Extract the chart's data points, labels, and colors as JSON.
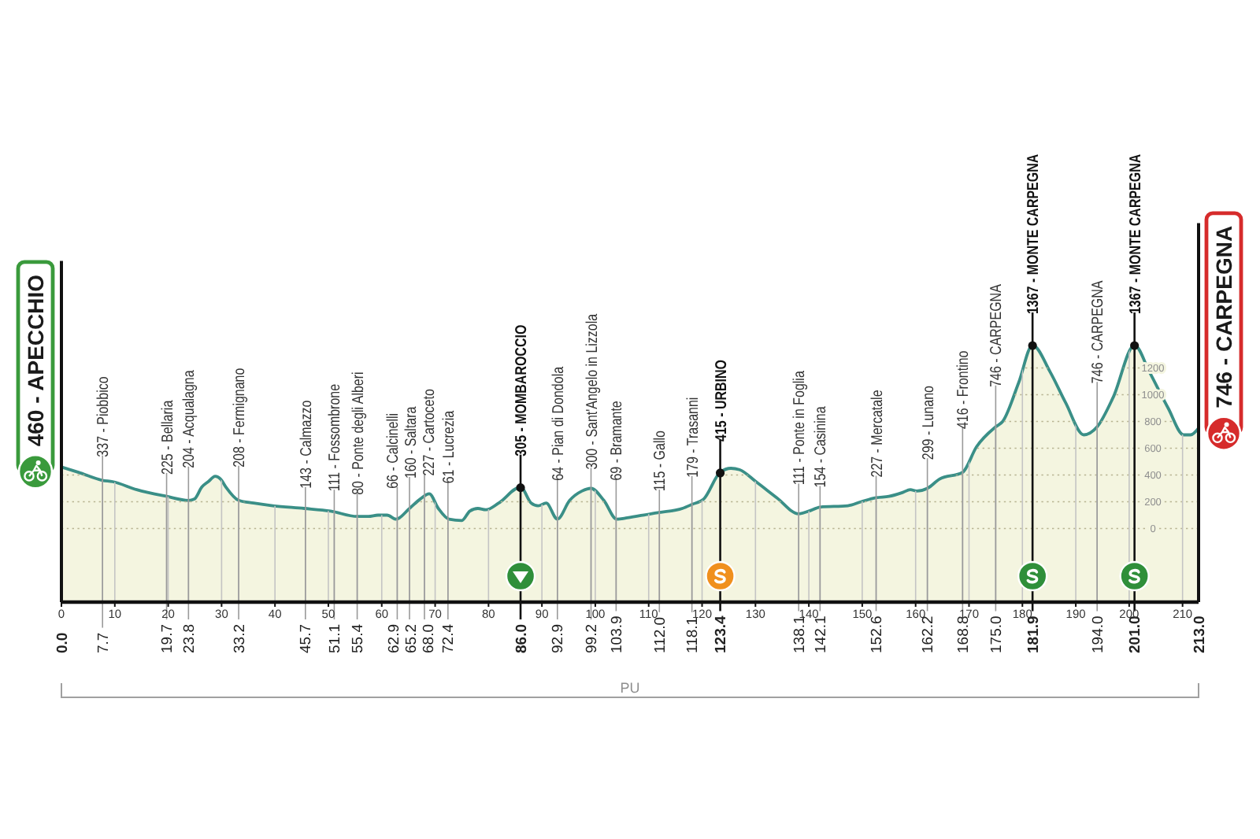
{
  "chart_data": {
    "type": "area",
    "color": "#f4f5e0",
    "x": [
      0,
      3.2,
      7.7,
      9.6,
      14.1,
      19.7,
      23.8,
      24.9,
      26.3,
      27.5,
      28.8,
      29.8,
      30.8,
      33.2,
      36,
      39.6,
      45.5,
      50.4,
      55.4,
      57.5,
      59.3,
      61,
      62.7,
      65.2,
      67.2,
      68.9,
      70.6,
      72.6,
      75,
      76.5,
      78,
      79.5,
      81.9,
      86,
      88,
      89.3,
      90.8,
      92.9,
      95.2,
      97.5,
      99.2,
      101.6,
      104,
      106,
      110.4,
      112,
      116.3,
      118.1,
      120.3,
      123.4,
      125.4,
      127,
      130.1,
      134,
      138.1,
      140,
      142.1,
      147.3,
      149.8,
      152.6,
      155,
      157.6,
      159,
      160.2,
      162.2,
      164.5,
      168.8,
      171.4,
      175,
      176.3,
      179.3,
      181.9,
      185.2,
      188.1,
      191.5,
      194,
      197,
      201,
      203.8,
      207.3,
      210.2,
      211.5,
      213
    ],
    "values": [
      460,
      420,
      360,
      350,
      290,
      240,
      210,
      220,
      310,
      350,
      390,
      370,
      310,
      210,
      190,
      170,
      150,
      130,
      90,
      90,
      100,
      100,
      70,
      150,
      220,
      260,
      150,
      70,
      60,
      130,
      150,
      140,
      190,
      310,
      190,
      170,
      190,
      70,
      210,
      280,
      300,
      210,
      70,
      80,
      110,
      120,
      150,
      180,
      220,
      420,
      450,
      440,
      350,
      230,
      110,
      130,
      160,
      170,
      200,
      230,
      240,
      270,
      290,
      280,
      300,
      370,
      420,
      610,
      760,
      800,
      1090,
      1370,
      1170,
      940,
      700,
      760,
      980,
      1370,
      1170,
      900,
      700,
      700,
      750
    ],
    "xlim": [
      0,
      213
    ],
    "ylim": [
      -550,
      2000
    ],
    "xticks": [
      {
        "value": 0,
        "label": "0.0"
      },
      7.7,
      19.7,
      23.8,
      33.2,
      45.7,
      51.1,
      55.4,
      62.9,
      65.2,
      {
        "value": 68,
        "label": "68.0"
      },
      72.4,
      {
        "value": 86,
        "label": "86.0"
      },
      92.9,
      99.2,
      103.9,
      {
        "value": 112,
        "label": "112.0"
      },
      118.1,
      123.4,
      138.1,
      142.1,
      152.6,
      162.2,
      168.8,
      {
        "value": 175,
        "label": "175.0"
      },
      181.9,
      {
        "value": 194,
        "label": "194.0"
      },
      {
        "value": 201,
        "label": "201.0"
      },
      {
        "value": 213,
        "label": "213.0"
      }
    ],
    "x2lim": [
      0,
      213
    ],
    "x2ticks": [
      0,
      10,
      20,
      30,
      40,
      50,
      60,
      70,
      80,
      90,
      100,
      110,
      120,
      130,
      140,
      150,
      160,
      170,
      180,
      190,
      200,
      210
    ],
    "yticks": [
      0,
      200,
      400,
      600,
      800,
      1000,
      1200
    ],
    "grid": true,
    "bands": [
      {
        "axis": "y",
        "from": -550,
        "to": 0,
        "color": "#f4f5e0"
      }
    ],
    "annotations": [
      {
        "text": "460 - APECCHIO",
        "x": 0,
        "y": 460
      },
      {
        "text": "305 - MOMBAROCCIO",
        "x": 86.0,
        "y": 305
      },
      {
        "text": "415 - URBINO",
        "x": 123.4,
        "y": 415
      },
      {
        "text": "1367 - MONTE CARPEGNA",
        "x": 181.9,
        "y": 1367
      },
      {
        "text": "1367 - MONTE CARPEGNA",
        "x": 201.0,
        "y": 1367
      },
      {
        "text": "746 - CARPEGNA",
        "x": 213,
        "y": 746
      },
      "PU"
    ],
    "ref_lines": [
      {
        "axis": "x",
        "value": 7.7,
        "label": "337 - Piobbico",
        "color": "#9a9a9a"
      },
      {
        "axis": "x",
        "value": 19.7,
        "label": "225 - Bellaria",
        "color": "#9a9a9a"
      },
      {
        "axis": "x",
        "value": 23.8,
        "label": "204 - Acqualagna",
        "color": "#9a9a9a"
      },
      {
        "axis": "x",
        "value": 33.2,
        "label": "208 - Fermignano",
        "color": "#9a9a9a"
      },
      {
        "axis": "x",
        "value": 45.7,
        "label": "143 - Calmazzo",
        "color": "#9a9a9a"
      },
      {
        "axis": "x",
        "value": 51.1,
        "label": "111 - Fossombrone",
        "color": "#9a9a9a"
      },
      {
        "axis": "x",
        "value": 55.4,
        "label": "80 - Ponte degli Alberi",
        "color": "#9a9a9a"
      },
      {
        "axis": "x",
        "value": 62.9,
        "label": "66 - Calcinelli",
        "color": "#9a9a9a"
      },
      {
        "axis": "x",
        "value": 65.2,
        "label": "160 - Saltara",
        "color": "#9a9a9a"
      },
      {
        "axis": "x",
        "value": 68.0,
        "label": "227 - Cartoceto",
        "color": "#9a9a9a"
      },
      {
        "axis": "x",
        "value": 72.4,
        "label": "61 - Lucrezia",
        "color": "#9a9a9a"
      },
      {
        "axis": "x",
        "value": 92.9,
        "label": "64 - Pian di Dondola",
        "color": "#9a9a9a"
      },
      {
        "axis": "x",
        "value": 99.2,
        "label": "300 - Sant'Angelo in Lizzola",
        "color": "#9a9a9a"
      },
      {
        "axis": "x",
        "value": 103.9,
        "label": "69 - Bramante",
        "color": "#9a9a9a"
      },
      {
        "axis": "x",
        "value": 112.0,
        "label": "115 - Gallo",
        "color": "#9a9a9a"
      },
      {
        "axis": "x",
        "value": 118.1,
        "label": "179 - Trasanni",
        "color": "#9a9a9a"
      },
      {
        "axis": "x",
        "value": 138.1,
        "label": "111 - Ponte in Foglia",
        "color": "#9a9a9a"
      },
      {
        "axis": "x",
        "value": 142.1,
        "label": "154 - Casinina",
        "color": "#9a9a9a"
      },
      {
        "axis": "x",
        "value": 152.6,
        "label": "227 - Mercatale",
        "color": "#9a9a9a"
      },
      {
        "axis": "x",
        "value": 162.2,
        "label": "299 - Lunano",
        "color": "#9a9a9a"
      },
      {
        "axis": "x",
        "value": 168.8,
        "label": "416 - Frontino",
        "color": "#9a9a9a"
      },
      {
        "axis": "x",
        "value": 175.0,
        "label": "746 - CARPEGNA",
        "color": "#9a9a9a"
      },
      {
        "axis": "x",
        "value": 194.0,
        "label": "746 - CARPEGNA",
        "color": "#9a9a9a"
      }
    ]
  }
}
